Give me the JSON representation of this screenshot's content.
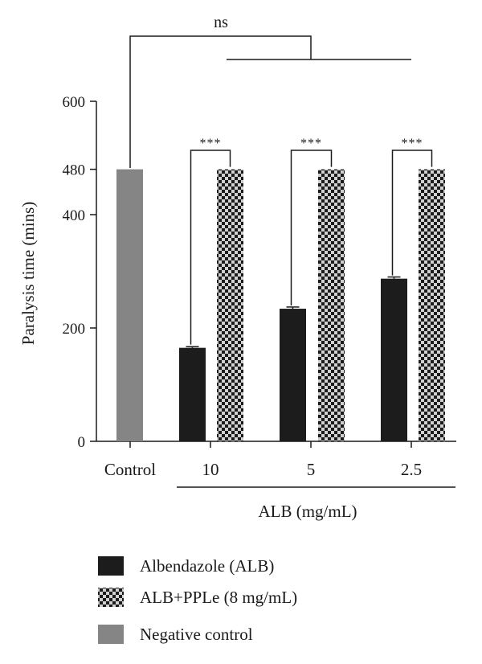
{
  "chart_data": {
    "type": "bar",
    "ylabel": "Paralysis time (mins)",
    "group_label": "ALB (mg/mL)",
    "ylim": [
      0,
      600
    ],
    "yticks": [
      0,
      200,
      400,
      480,
      600
    ],
    "categories": [
      "Control",
      "10",
      "5",
      "2.5"
    ],
    "series": [
      {
        "name": "Negative control",
        "values": [
          480,
          null,
          null,
          null
        ],
        "color": "#858585",
        "pattern": "solid"
      },
      {
        "name": "Albendazole (ALB)",
        "values": [
          null,
          165,
          234,
          287
        ],
        "color": "#1c1c1c",
        "pattern": "solid"
      },
      {
        "name": "ALB+PPLe (8 mg/mL)",
        "values": [
          null,
          480,
          480,
          480
        ],
        "color": "#1c1c1c",
        "pattern": "checker"
      }
    ],
    "errors": {
      "Albendazole (ALB)": [
        null,
        2,
        3,
        3
      ]
    },
    "significance": [
      {
        "label": "***",
        "category": "10"
      },
      {
        "label": "***",
        "category": "5"
      },
      {
        "label": "***",
        "category": "2.5"
      },
      {
        "label": "ns",
        "between": "Control vs ALB groups"
      }
    ],
    "legend_order": [
      "Albendazole (ALB)",
      "ALB+PPLe (8 mg/mL)",
      "Negative control"
    ],
    "legend_position": "bottom",
    "grid": false
  }
}
